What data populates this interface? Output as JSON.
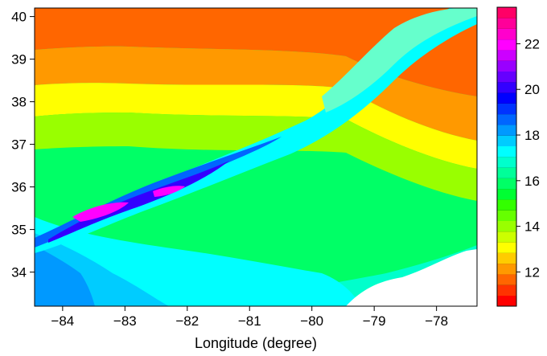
{
  "chart_data": {
    "type": "heatmap",
    "title": "",
    "xlabel": "Longitude (degree)",
    "ylabel": "",
    "xlim": [
      -84.45,
      -77.35
    ],
    "ylim": [
      33.2,
      40.2
    ],
    "xticks": [
      -84,
      -83,
      -82,
      -81,
      -80,
      -79,
      -78
    ],
    "yticks": [
      34,
      35,
      36,
      37,
      38,
      39,
      40
    ],
    "xtick_labels": [
      "−84",
      "−83",
      "−82",
      "−81",
      "−80",
      "−79",
      "−78"
    ],
    "ytick_labels": [
      "34",
      "35",
      "36",
      "37",
      "38",
      "39",
      "40"
    ],
    "colorbar": {
      "range": [
        10.5,
        23.6
      ],
      "ticks": [
        12,
        14,
        16,
        18,
        20,
        22
      ],
      "tick_labels": [
        "12",
        "14",
        "16",
        "18",
        "20",
        "22"
      ],
      "levels": [
        "#ff0000",
        "#ff3300",
        "#ff6600",
        "#ff9900",
        "#ffcc00",
        "#ffff00",
        "#ccff00",
        "#99ff00",
        "#66ff00",
        "#33ff00",
        "#00ff33",
        "#00ff66",
        "#00ff99",
        "#00ffcc",
        "#00ffff",
        "#00ccff",
        "#0099ff",
        "#0066ff",
        "#0033ff",
        "#0000ff",
        "#3300ff",
        "#6600ff",
        "#9900ff",
        "#cc00ff",
        "#ff00ff",
        "#ff00cc",
        "#ff0099",
        "#ff0066"
      ]
    },
    "field": {
      "background_value": 16.5,
      "no_data_region": "southeast corner",
      "features": [
        {
          "kind": "band_north",
          "values": [
            11.5,
            12.5,
            13.5
          ]
        },
        {
          "kind": "ridge",
          "peak_value": 20.5
        },
        {
          "kind": "southwest_lowland",
          "values": [
            17.0,
            18.5
          ]
        }
      ]
    }
  }
}
